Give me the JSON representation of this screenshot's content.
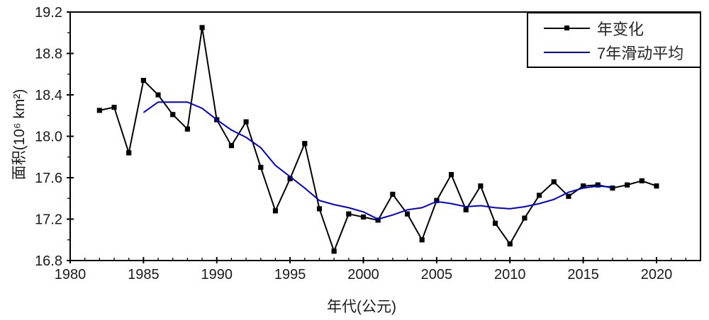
{
  "colors": {
    "annual_series": "#000000",
    "moving_average": "#0000cc",
    "text": "#1a1a1a",
    "background": "#ffffff"
  },
  "chart_data": {
    "type": "line",
    "title": "",
    "xlabel": "年代(公元)",
    "ylabel": "面积(10⁶ km²)",
    "xlim": [
      1980,
      2023
    ],
    "ylim": [
      16.8,
      19.2
    ],
    "x_major_ticks": [
      1980,
      1985,
      1990,
      1995,
      2000,
      2005,
      2010,
      2015,
      2020
    ],
    "x_minor_step": 1,
    "y_major_ticks": [
      16.8,
      17.2,
      17.6,
      18.0,
      18.4,
      18.8,
      19.2
    ],
    "y_minor_step": 0.2,
    "grid": false,
    "legend_position": "top-right",
    "series": [
      {
        "name": "年变化",
        "color": "#000000",
        "marker": "square",
        "line_width": 2,
        "x": [
          1982,
          1983,
          1984,
          1985,
          1986,
          1987,
          1988,
          1989,
          1990,
          1991,
          1992,
          1993,
          1994,
          1995,
          1996,
          1997,
          1998,
          1999,
          2000,
          2001,
          2002,
          2003,
          2004,
          2005,
          2006,
          2007,
          2008,
          2009,
          2010,
          2011,
          2012,
          2013,
          2014,
          2015,
          2016,
          2017,
          2018,
          2019,
          2020
        ],
        "values": [
          18.25,
          18.28,
          17.84,
          18.54,
          18.4,
          18.21,
          18.07,
          19.05,
          18.16,
          17.91,
          18.14,
          17.7,
          17.28,
          17.59,
          17.93,
          17.3,
          16.89,
          17.25,
          17.22,
          17.19,
          17.44,
          17.25,
          17.0,
          17.38,
          17.63,
          17.29,
          17.52,
          17.16,
          16.96,
          17.21,
          17.43,
          17.56,
          17.42,
          17.52,
          17.53,
          17.5,
          17.53,
          17.57,
          17.52
        ]
      },
      {
        "name": "7年滑动平均",
        "color": "#0000cc",
        "marker": "none",
        "line_width": 2,
        "x": [
          1985,
          1986,
          1987,
          1988,
          1989,
          1990,
          1991,
          1992,
          1993,
          1994,
          1995,
          1996,
          1997,
          1998,
          1999,
          2000,
          2001,
          2002,
          2003,
          2004,
          2005,
          2006,
          2007,
          2008,
          2009,
          2010,
          2011,
          2012,
          2013,
          2014,
          2015,
          2016,
          2017
        ],
        "values": [
          18.23,
          18.33,
          18.33,
          18.33,
          18.27,
          18.16,
          18.06,
          17.99,
          17.89,
          17.72,
          17.61,
          17.5,
          17.38,
          17.34,
          17.31,
          17.27,
          17.2,
          17.24,
          17.29,
          17.31,
          17.37,
          17.35,
          17.32,
          17.33,
          17.31,
          17.3,
          17.32,
          17.35,
          17.39,
          17.46,
          17.5,
          17.52,
          17.51
        ]
      }
    ]
  }
}
